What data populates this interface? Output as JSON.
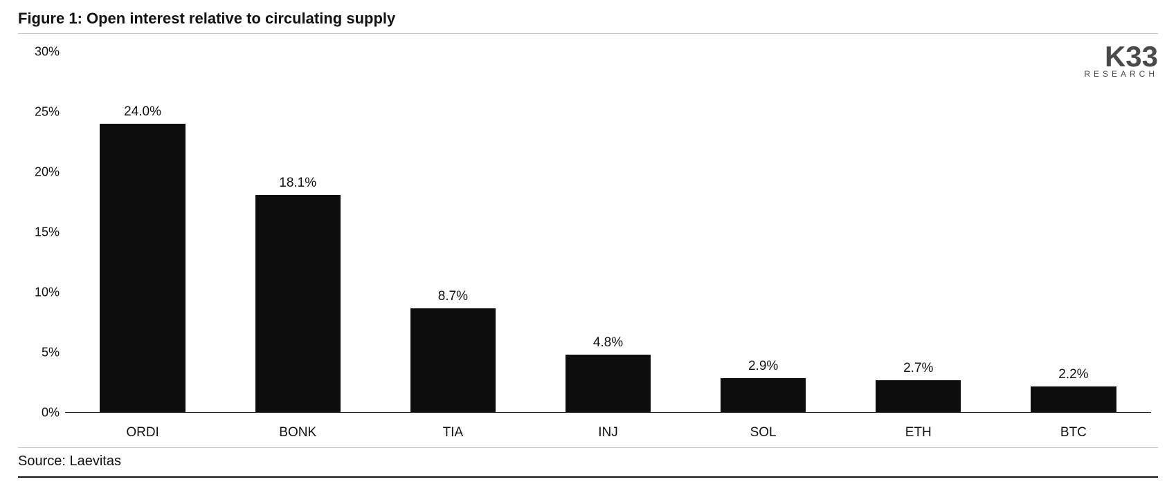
{
  "title": "Figure 1: Open interest relative to circulating supply",
  "source": "Source: Laevitas",
  "logo": {
    "main": "K33",
    "sub": "RESEARCH"
  },
  "chart": {
    "type": "bar",
    "ylim": [
      0,
      30
    ],
    "yticks": [
      0,
      5,
      10,
      15,
      20,
      25,
      30
    ],
    "ytick_labels": [
      "0%",
      "5%",
      "10%",
      "15%",
      "20%",
      "25%",
      "30%"
    ],
    "categories": [
      "ORDI",
      "BONK",
      "TIA",
      "INJ",
      "SOL",
      "ETH",
      "BTC"
    ],
    "values": [
      24.0,
      18.1,
      8.7,
      4.8,
      2.9,
      2.7,
      2.2
    ],
    "value_labels": [
      "24.0%",
      "18.1%",
      "8.7%",
      "4.8%",
      "2.9%",
      "2.7%",
      "2.2%"
    ],
    "bar_color": "#0d0d0d",
    "bar_width": 0.55,
    "background_color": "#ffffff",
    "axis_color": "#111111",
    "tick_fontsize": 18,
    "label_fontsize": 19,
    "title_fontsize": 22
  }
}
